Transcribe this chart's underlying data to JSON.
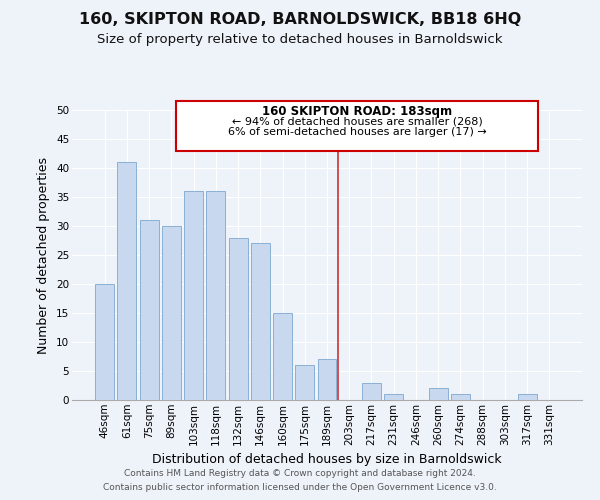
{
  "title": "160, SKIPTON ROAD, BARNOLDSWICK, BB18 6HQ",
  "subtitle": "Size of property relative to detached houses in Barnoldswick",
  "xlabel": "Distribution of detached houses by size in Barnoldswick",
  "ylabel": "Number of detached properties",
  "bar_labels": [
    "46sqm",
    "61sqm",
    "75sqm",
    "89sqm",
    "103sqm",
    "118sqm",
    "132sqm",
    "146sqm",
    "160sqm",
    "175sqm",
    "189sqm",
    "203sqm",
    "217sqm",
    "231sqm",
    "246sqm",
    "260sqm",
    "274sqm",
    "288sqm",
    "303sqm",
    "317sqm",
    "331sqm"
  ],
  "bar_values": [
    20,
    41,
    31,
    30,
    36,
    36,
    28,
    27,
    15,
    6,
    7,
    0,
    3,
    1,
    0,
    2,
    1,
    0,
    0,
    1,
    0
  ],
  "bar_color": "#c8d9ef",
  "bar_edge_color": "#8ab0d4",
  "annotation_title": "160 SKIPTON ROAD: 183sqm",
  "annotation_line1": "← 94% of detached houses are smaller (268)",
  "annotation_line2": "6% of semi-detached houses are larger (17) →",
  "annotation_box_color": "#ffffff",
  "annotation_box_edge_color": "#cc0000",
  "vline_color": "#cc3333",
  "vline_x": 10.5,
  "ylim": [
    0,
    50
  ],
  "yticks": [
    0,
    5,
    10,
    15,
    20,
    25,
    30,
    35,
    40,
    45,
    50
  ],
  "footer1": "Contains HM Land Registry data © Crown copyright and database right 2024.",
  "footer2": "Contains public sector information licensed under the Open Government Licence v3.0.",
  "bg_color": "#eef2f9",
  "grid_color": "#ffffff",
  "title_fontsize": 11.5,
  "subtitle_fontsize": 9.5,
  "tick_fontsize": 7.5,
  "ylabel_fontsize": 9,
  "xlabel_fontsize": 9,
  "footer_fontsize": 6.5
}
